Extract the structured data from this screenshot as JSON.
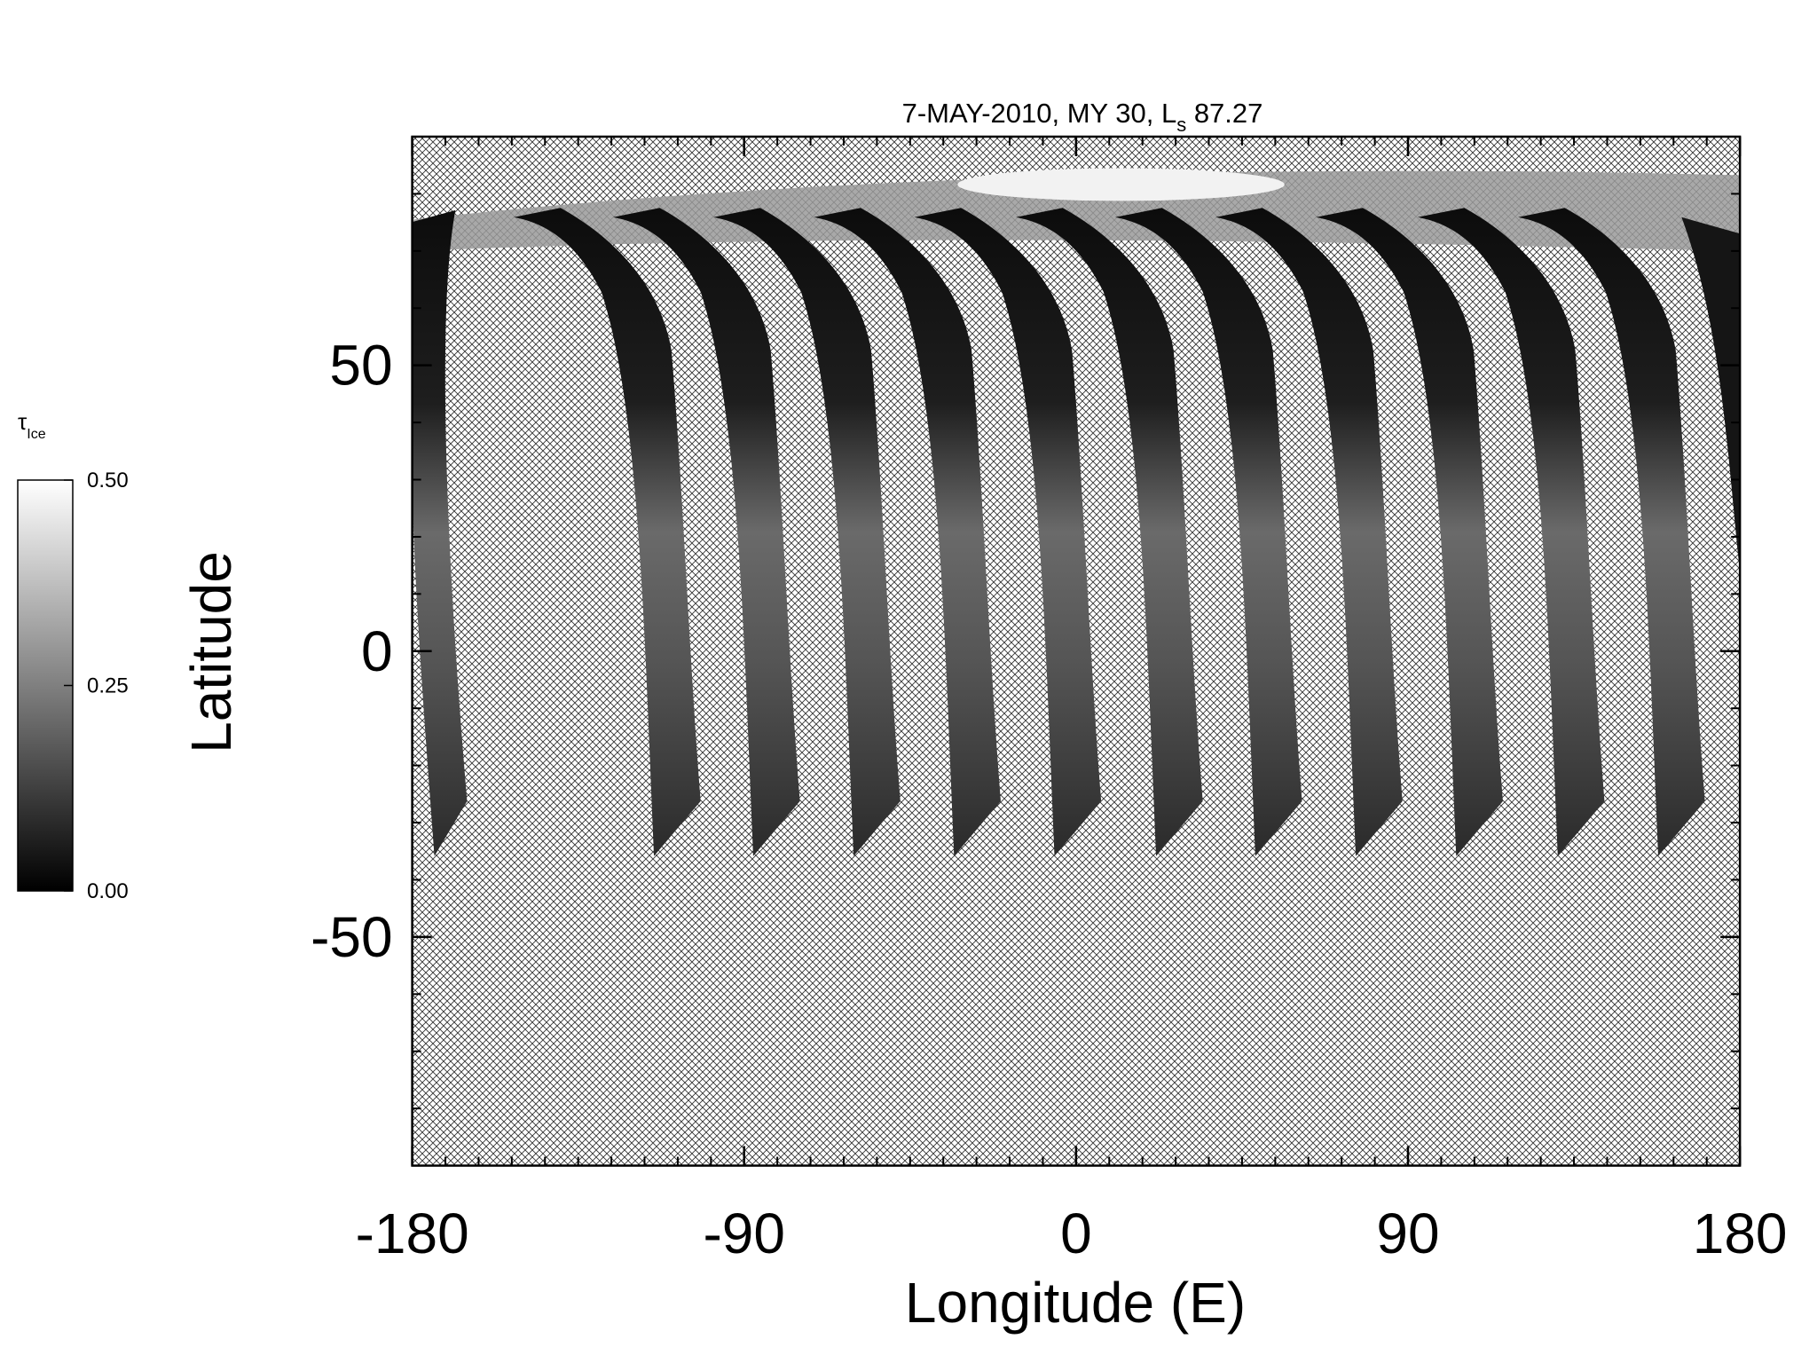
{
  "chart_data": {
    "type": "map",
    "title": "7-MAY-2010, MY 30,  L",
    "title_subscript": "s",
    "title_suffix": " 87.27",
    "xlabel": "Longitude (E)",
    "ylabel": "Latitude",
    "xlim": [
      -180,
      180
    ],
    "ylim": [
      -90,
      90
    ],
    "xticks": [
      -180,
      -90,
      0,
      90,
      180
    ],
    "yticks": [
      -50,
      0,
      50
    ],
    "xminorticks": [
      -180,
      -171,
      -162,
      -153,
      -144,
      -135,
      -126,
      -117,
      -108,
      -99,
      -90,
      -81,
      -72,
      -63,
      -54,
      -45,
      -36,
      -27,
      -18,
      -9,
      0,
      9,
      18,
      27,
      36,
      45,
      54,
      63,
      72,
      81,
      90,
      99,
      108,
      117,
      126,
      135,
      144,
      153,
      162,
      171,
      180
    ],
    "yminorticks": [
      -90,
      -80,
      -70,
      -60,
      -50,
      -40,
      -30,
      -20,
      -10,
      0,
      10,
      20,
      30,
      40,
      50,
      60,
      70,
      80,
      90
    ],
    "colorbar": {
      "label": "τ",
      "label_subscript": "Ice",
      "clim": [
        0,
        0.5
      ],
      "ticks": [
        {
          "value": 0,
          "label": "0.00"
        },
        {
          "value": 0.25,
          "label": "0.25"
        },
        {
          "value": 0.5,
          "label": "0.50"
        }
      ],
      "colors": [
        "#000000",
        "#ffffff"
      ]
    }
  }
}
